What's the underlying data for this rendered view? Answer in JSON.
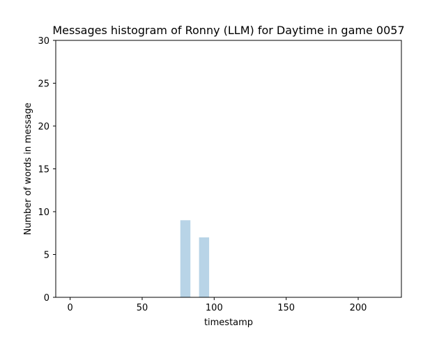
{
  "chart_data": {
    "type": "bar",
    "title": "Messages histogram of Ronny (LLM) for Daytime in game 0057",
    "xlabel": "timestamp",
    "ylabel": "Number of words in message",
    "xlim": [
      -10,
      230
    ],
    "ylim": [
      0,
      30
    ],
    "xticks": [
      0,
      50,
      100,
      150,
      200
    ],
    "yticks": [
      0,
      5,
      10,
      15,
      20,
      25,
      30
    ],
    "bar_width": 7,
    "grid": false,
    "legend": "none",
    "bar_color": "#b8d4e7",
    "series": [
      {
        "x": [
          80,
          93
        ],
        "values": [
          9,
          7
        ]
      }
    ]
  }
}
